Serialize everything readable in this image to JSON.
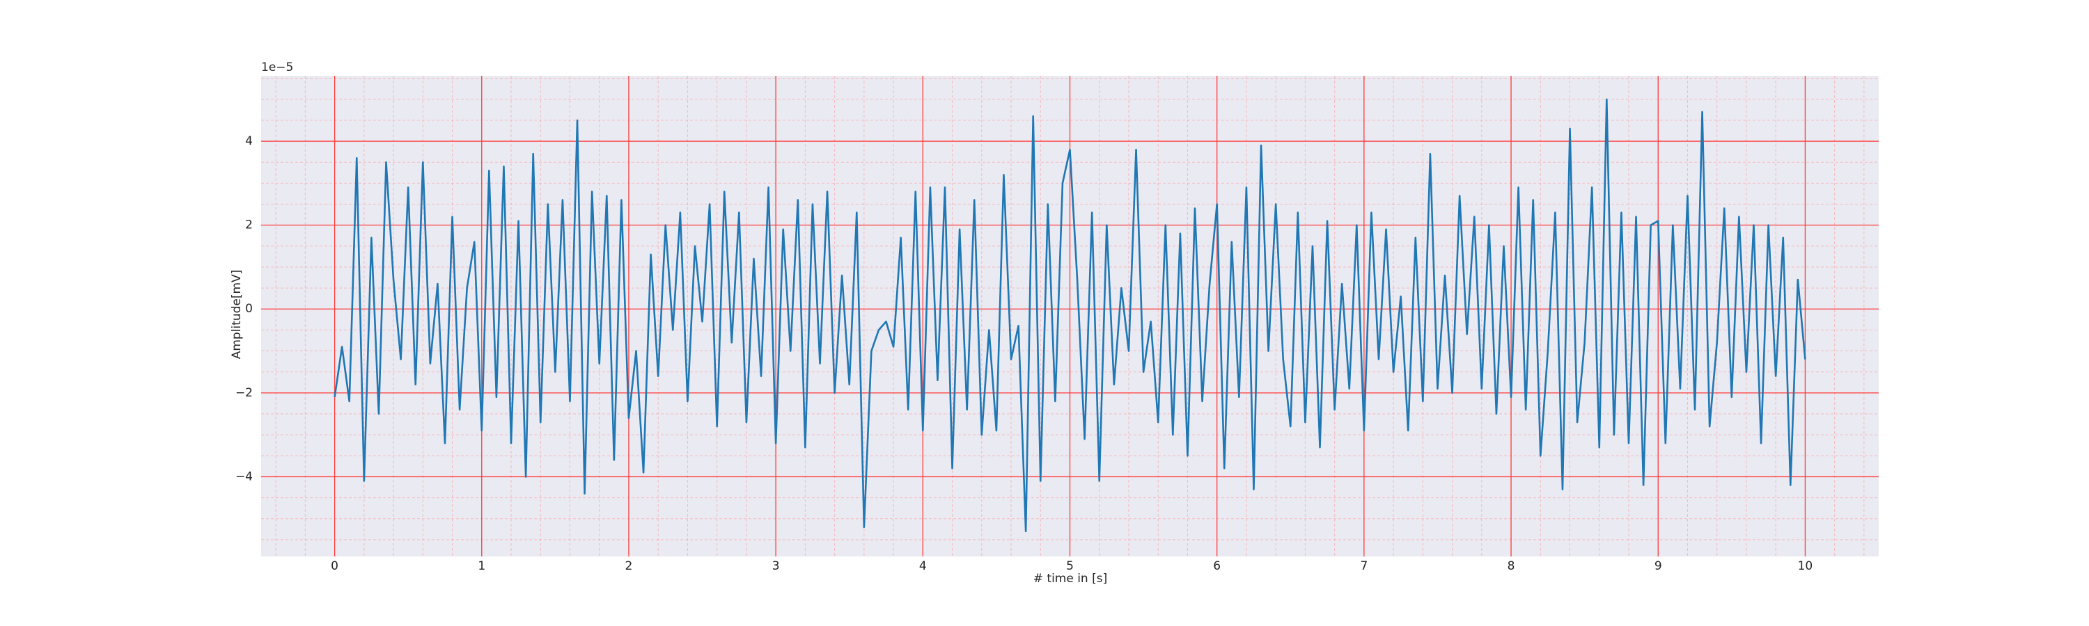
{
  "chart_data": {
    "type": "line",
    "xlabel": "# time in [s]",
    "ylabel": "Amplitude[mV]",
    "y_offset_label": "1e−5",
    "xlim": [
      -0.5,
      10.5
    ],
    "ylim": [
      -5.9,
      5.56
    ],
    "xticks": [
      0,
      1,
      2,
      3,
      4,
      5,
      6,
      7,
      8,
      9,
      10
    ],
    "yticks": [
      {
        "value": -4,
        "label": "−4"
      },
      {
        "value": -2,
        "label": "−2"
      },
      0,
      2,
      4
    ],
    "xminorticks": [
      -0.4,
      -0.2,
      0.2,
      0.4,
      0.6,
      0.8,
      1.2,
      1.4,
      1.6,
      1.8,
      2.2,
      2.4,
      2.6,
      2.8,
      3.2,
      3.4,
      3.6,
      3.8,
      4.2,
      4.4,
      4.6,
      4.8,
      5.2,
      5.4,
      5.6,
      5.8,
      6.2,
      6.4,
      6.6,
      6.8,
      7.2,
      7.4,
      7.6,
      7.8,
      8.2,
      8.4,
      8.6,
      8.8,
      9.2,
      9.4,
      9.6,
      9.8,
      10.2,
      10.4
    ],
    "yminorticks": [
      -5.5,
      -5,
      -4.5,
      -3.5,
      -3,
      -2.5,
      -1.5,
      -1,
      -0.5,
      0.5,
      1,
      1.5,
      2.5,
      3,
      3.5,
      4.5,
      5,
      5.5
    ],
    "grid": true,
    "minor_grid": true,
    "series": [
      {
        "color": "#1f77b4",
        "x": [
          0,
          0.05,
          0.1,
          0.15,
          0.2,
          0.25,
          0.3,
          0.35,
          0.4,
          0.45,
          0.5,
          0.55,
          0.6,
          0.65,
          0.7,
          0.75,
          0.8,
          0.85,
          0.9,
          0.95,
          1,
          1.05,
          1.1,
          1.15,
          1.2,
          1.25,
          1.3,
          1.35,
          1.4,
          1.45,
          1.5,
          1.55,
          1.6,
          1.65,
          1.7,
          1.75,
          1.8,
          1.85,
          1.9,
          1.95,
          2,
          2.05,
          2.1,
          2.15,
          2.2,
          2.25,
          2.3,
          2.35,
          2.4,
          2.45,
          2.5,
          2.55,
          2.6,
          2.65,
          2.7,
          2.75,
          2.8,
          2.85,
          2.9,
          2.95,
          3,
          3.05,
          3.1,
          3.15,
          3.2,
          3.25,
          3.3,
          3.35,
          3.4,
          3.45,
          3.5,
          3.55,
          3.6,
          3.65,
          3.7,
          3.75,
          3.8,
          3.85,
          3.9,
          3.95,
          4,
          4.05,
          4.1,
          4.15,
          4.2,
          4.25,
          4.3,
          4.35,
          4.4,
          4.45,
          4.5,
          4.55,
          4.6,
          4.65,
          4.7,
          4.75,
          4.8,
          4.85,
          4.9,
          4.95,
          5,
          5.05,
          5.1,
          5.15,
          5.2,
          5.25,
          5.3,
          5.35,
          5.4,
          5.45,
          5.5,
          5.55,
          5.6,
          5.65,
          5.7,
          5.75,
          5.8,
          5.85,
          5.9,
          5.95,
          6,
          6.05,
          6.1,
          6.15,
          6.2,
          6.25,
          6.3,
          6.35,
          6.4,
          6.45,
          6.5,
          6.55,
          6.6,
          6.65,
          6.7,
          6.75,
          6.8,
          6.85,
          6.9,
          6.95,
          7,
          7.05,
          7.1,
          7.15,
          7.2,
          7.25,
          7.3,
          7.35,
          7.4,
          7.45,
          7.5,
          7.55,
          7.6,
          7.65,
          7.7,
          7.75,
          7.8,
          7.85,
          7.9,
          7.95,
          8,
          8.05,
          8.1,
          8.15,
          8.2,
          8.25,
          8.3,
          8.35,
          8.4,
          8.45,
          8.5,
          8.55,
          8.6,
          8.65,
          8.7,
          8.75,
          8.8,
          8.85,
          8.9,
          8.95,
          9,
          9.05,
          9.1,
          9.15,
          9.2,
          9.25,
          9.3,
          9.35,
          9.4,
          9.45,
          9.5,
          9.55,
          9.6,
          9.65,
          9.7,
          9.75,
          9.8,
          9.85,
          9.9,
          9.95,
          10
        ],
        "values": [
          -2.1,
          -0.9,
          -2.2,
          3.6,
          -4.1,
          1.7,
          -2.5,
          3.5,
          0.7,
          -1.2,
          2.9,
          -1.8,
          3.5,
          -1.3,
          0.6,
          -3.2,
          2.2,
          -2.4,
          0.5,
          1.6,
          -2.9,
          3.3,
          -2.1,
          3.4,
          -3.2,
          2.1,
          -4.0,
          3.7,
          -2.7,
          2.5,
          -1.5,
          2.6,
          -2.2,
          4.5,
          -4.4,
          2.8,
          -1.3,
          2.7,
          -3.6,
          2.6,
          -2.6,
          -1.0,
          -3.9,
          1.3,
          -1.6,
          2.0,
          -0.5,
          2.3,
          -2.2,
          1.5,
          -0.3,
          2.5,
          -2.8,
          2.8,
          -0.8,
          2.3,
          -2.7,
          1.2,
          -1.6,
          2.9,
          -3.2,
          1.9,
          -1.0,
          2.6,
          -3.3,
          2.5,
          -1.3,
          2.8,
          -2.0,
          0.8,
          -1.8,
          2.3,
          -5.2,
          -1.0,
          -0.5,
          -0.3,
          -0.9,
          1.7,
          -2.4,
          2.8,
          -2.9,
          2.9,
          -1.7,
          2.9,
          -3.8,
          1.9,
          -2.4,
          2.6,
          -3.0,
          -0.5,
          -2.9,
          3.2,
          -1.2,
          -0.4,
          -5.3,
          4.6,
          -4.1,
          2.5,
          -2.2,
          3.0,
          3.8,
          0.7,
          -3.1,
          2.3,
          -4.1,
          2.0,
          -1.8,
          0.5,
          -1.0,
          3.8,
          -1.5,
          -0.3,
          -2.7,
          2.0,
          -3.0,
          1.8,
          -3.5,
          2.4,
          -2.2,
          0.6,
          2.5,
          -3.8,
          1.6,
          -2.1,
          2.9,
          -4.3,
          3.9,
          -1.0,
          2.5,
          -1.2,
          -2.8,
          2.3,
          -2.7,
          1.5,
          -3.3,
          2.1,
          -2.4,
          0.6,
          -1.9,
          2.0,
          -2.9,
          2.3,
          -1.2,
          1.9,
          -1.5,
          0.3,
          -2.9,
          1.7,
          -2.2,
          3.7,
          -1.9,
          0.8,
          -2.0,
          2.7,
          -0.6,
          2.2,
          -1.9,
          2.0,
          -2.5,
          1.5,
          -2.1,
          2.9,
          -2.4,
          2.6,
          -3.5,
          -1.0,
          2.3,
          -4.3,
          4.3,
          -2.7,
          -0.8,
          2.9,
          -3.3,
          5.0,
          -3.0,
          2.3,
          -3.2,
          2.2,
          -4.2,
          2.0,
          2.1,
          -3.2,
          2.0,
          -1.9,
          2.7,
          -2.4,
          4.7,
          -2.8,
          -0.8,
          2.4,
          -2.1,
          2.2,
          -1.5,
          2.0,
          -3.2,
          2.0,
          -1.6,
          1.7,
          -4.2,
          0.7,
          -1.2
        ]
      }
    ]
  }
}
